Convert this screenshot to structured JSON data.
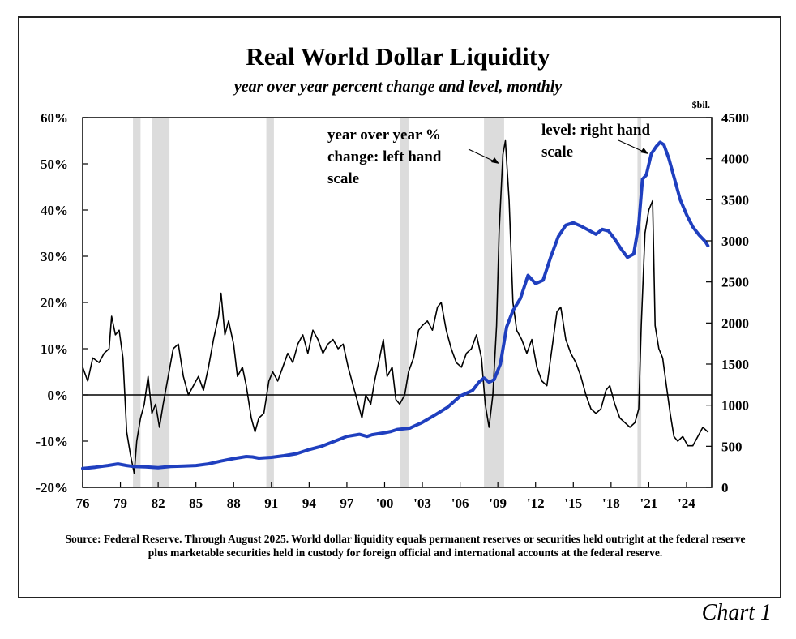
{
  "title": "Real World Dollar Liquidity",
  "subtitle": "year over year percent change and level, monthly",
  "source": "Source: Federal Reserve. Through August 2025. World dollar liquidity equals permanent reserves or securities held outright at the federal reserve plus marketable securities held in custody for foreign official and international accounts at the federal reserve.",
  "caption": "Chart 1",
  "colors": {
    "level_line": "#1f3fbf",
    "yoy_line": "#000000",
    "recession_band": "#dcdcdc"
  },
  "chart_data": {
    "type": "line",
    "x_tick_labels": [
      "76",
      "79",
      "82",
      "85",
      "88",
      "91",
      "94",
      "97",
      "'00",
      "'03",
      "'06",
      "'09",
      "'12",
      "'15",
      "'18",
      "'21",
      "'24"
    ],
    "x_ticks": [
      1976,
      1979,
      1982,
      1985,
      1988,
      1991,
      1994,
      1997,
      2000,
      2003,
      2006,
      2009,
      2012,
      2015,
      2018,
      2021,
      2024
    ],
    "xlim": [
      1976,
      2026
    ],
    "left_axis": {
      "unit": "",
      "ylim": [
        -20,
        60
      ],
      "ticks": [
        -20,
        -10,
        0,
        10,
        20,
        30,
        40,
        50,
        60
      ],
      "tick_labels": [
        "-20%",
        "-10%",
        "0%",
        "10%",
        "20%",
        "30%",
        "40%",
        "50%",
        "60%"
      ]
    },
    "right_axis": {
      "unit": "$bil.",
      "ylim": [
        0,
        4500
      ],
      "ticks": [
        0,
        500,
        1000,
        1500,
        2000,
        2500,
        3000,
        3500,
        4000,
        4500
      ],
      "tick_labels": [
        "0",
        "500",
        "1000",
        "1500",
        "2000",
        "2500",
        "3000",
        "3500",
        "4000",
        "4500"
      ]
    },
    "recessions": [
      [
        1980.0,
        1980.6
      ],
      [
        1981.5,
        1982.9
      ],
      [
        1990.6,
        1991.2
      ],
      [
        2001.2,
        2001.9
      ],
      [
        2007.9,
        2009.5
      ],
      [
        2020.1,
        2020.4
      ]
    ],
    "zero_line": 0,
    "series": [
      {
        "axis": "left",
        "annotation": "year over year % change: left hand scale",
        "color": "#000000",
        "points": [
          [
            1976.0,
            6
          ],
          [
            1976.4,
            3
          ],
          [
            1976.8,
            8
          ],
          [
            1977.3,
            7
          ],
          [
            1977.7,
            9
          ],
          [
            1978.1,
            10
          ],
          [
            1978.3,
            17
          ],
          [
            1978.6,
            13
          ],
          [
            1978.9,
            14
          ],
          [
            1979.2,
            8
          ],
          [
            1979.5,
            -8
          ],
          [
            1979.8,
            -13
          ],
          [
            1980.1,
            -17
          ],
          [
            1980.3,
            -10
          ],
          [
            1980.6,
            -5
          ],
          [
            1980.9,
            -2
          ],
          [
            1981.2,
            4
          ],
          [
            1981.5,
            -4
          ],
          [
            1981.8,
            -2
          ],
          [
            1982.1,
            -7
          ],
          [
            1982.4,
            -2
          ],
          [
            1982.8,
            4
          ],
          [
            1983.2,
            10
          ],
          [
            1983.6,
            11
          ],
          [
            1984.0,
            4
          ],
          [
            1984.4,
            0
          ],
          [
            1984.8,
            2
          ],
          [
            1985.2,
            4
          ],
          [
            1985.6,
            1
          ],
          [
            1986.0,
            6
          ],
          [
            1986.4,
            12
          ],
          [
            1986.8,
            17
          ],
          [
            1987.0,
            22
          ],
          [
            1987.3,
            13
          ],
          [
            1987.6,
            16
          ],
          [
            1988.0,
            11
          ],
          [
            1988.3,
            4
          ],
          [
            1988.7,
            6
          ],
          [
            1989.0,
            2
          ],
          [
            1989.4,
            -5
          ],
          [
            1989.7,
            -8
          ],
          [
            1990.0,
            -5
          ],
          [
            1990.4,
            -4
          ],
          [
            1990.8,
            3
          ],
          [
            1991.1,
            5
          ],
          [
            1991.5,
            3
          ],
          [
            1991.9,
            6
          ],
          [
            1992.3,
            9
          ],
          [
            1992.7,
            7
          ],
          [
            1993.1,
            11
          ],
          [
            1993.5,
            13
          ],
          [
            1993.9,
            9
          ],
          [
            1994.3,
            14
          ],
          [
            1994.7,
            12
          ],
          [
            1995.1,
            9
          ],
          [
            1995.5,
            11
          ],
          [
            1995.9,
            12
          ],
          [
            1996.3,
            10
          ],
          [
            1996.7,
            11
          ],
          [
            1997.1,
            6
          ],
          [
            1997.5,
            2
          ],
          [
            1997.9,
            -2
          ],
          [
            1998.2,
            -5
          ],
          [
            1998.5,
            0
          ],
          [
            1998.9,
            -2
          ],
          [
            1999.2,
            3
          ],
          [
            1999.6,
            8
          ],
          [
            1999.9,
            12
          ],
          [
            2000.2,
            4
          ],
          [
            2000.6,
            6
          ],
          [
            2000.9,
            -1
          ],
          [
            2001.2,
            -2
          ],
          [
            2001.6,
            0
          ],
          [
            2001.9,
            5
          ],
          [
            2002.3,
            8
          ],
          [
            2002.7,
            14
          ],
          [
            2003.0,
            15
          ],
          [
            2003.4,
            16
          ],
          [
            2003.8,
            14
          ],
          [
            2004.2,
            19
          ],
          [
            2004.5,
            20
          ],
          [
            2004.9,
            14
          ],
          [
            2005.3,
            10
          ],
          [
            2005.7,
            7
          ],
          [
            2006.1,
            6
          ],
          [
            2006.5,
            9
          ],
          [
            2006.9,
            10
          ],
          [
            2007.3,
            13
          ],
          [
            2007.7,
            8
          ],
          [
            2008.0,
            -2
          ],
          [
            2008.3,
            -7
          ],
          [
            2008.6,
            0
          ],
          [
            2008.9,
            15
          ],
          [
            2009.1,
            35
          ],
          [
            2009.4,
            52
          ],
          [
            2009.6,
            55
          ],
          [
            2009.9,
            42
          ],
          [
            2010.2,
            20
          ],
          [
            2010.5,
            14
          ],
          [
            2010.9,
            12
          ],
          [
            2011.3,
            9
          ],
          [
            2011.7,
            12
          ],
          [
            2012.1,
            6
          ],
          [
            2012.5,
            3
          ],
          [
            2012.9,
            2
          ],
          [
            2013.3,
            10
          ],
          [
            2013.7,
            18
          ],
          [
            2014.0,
            19
          ],
          [
            2014.4,
            12
          ],
          [
            2014.8,
            9
          ],
          [
            2015.2,
            7
          ],
          [
            2015.6,
            4
          ],
          [
            2016.0,
            0
          ],
          [
            2016.4,
            -3
          ],
          [
            2016.8,
            -4
          ],
          [
            2017.2,
            -3
          ],
          [
            2017.6,
            1
          ],
          [
            2017.9,
            2
          ],
          [
            2018.3,
            -2
          ],
          [
            2018.7,
            -5
          ],
          [
            2019.1,
            -6
          ],
          [
            2019.5,
            -7
          ],
          [
            2019.9,
            -6
          ],
          [
            2020.2,
            -3
          ],
          [
            2020.4,
            15
          ],
          [
            2020.7,
            35
          ],
          [
            2021.0,
            40
          ],
          [
            2021.3,
            42
          ],
          [
            2021.5,
            15
          ],
          [
            2021.8,
            10
          ],
          [
            2022.1,
            8
          ],
          [
            2022.4,
            2
          ],
          [
            2022.7,
            -4
          ],
          [
            2023.0,
            -9
          ],
          [
            2023.3,
            -10
          ],
          [
            2023.7,
            -9
          ],
          [
            2024.1,
            -11
          ],
          [
            2024.5,
            -11
          ],
          [
            2024.9,
            -9
          ],
          [
            2025.3,
            -7
          ],
          [
            2025.5,
            -7.5
          ],
          [
            2025.7,
            -8
          ]
        ]
      },
      {
        "axis": "right",
        "annotation": "level: right hand scale",
        "color": "#1f3fbf",
        "points": [
          [
            1976.0,
            230
          ],
          [
            1977.0,
            245
          ],
          [
            1978.0,
            265
          ],
          [
            1978.8,
            285
          ],
          [
            1979.5,
            265
          ],
          [
            1980.0,
            255
          ],
          [
            1981.0,
            250
          ],
          [
            1982.0,
            240
          ],
          [
            1983.0,
            255
          ],
          [
            1984.0,
            260
          ],
          [
            1985.0,
            265
          ],
          [
            1986.0,
            285
          ],
          [
            1987.0,
            320
          ],
          [
            1988.0,
            350
          ],
          [
            1989.0,
            375
          ],
          [
            1989.5,
            370
          ],
          [
            1990.0,
            355
          ],
          [
            1991.0,
            365
          ],
          [
            1992.0,
            385
          ],
          [
            1993.0,
            410
          ],
          [
            1994.0,
            460
          ],
          [
            1995.0,
            500
          ],
          [
            1996.0,
            560
          ],
          [
            1997.0,
            620
          ],
          [
            1998.0,
            645
          ],
          [
            1998.6,
            620
          ],
          [
            1999.0,
            640
          ],
          [
            2000.0,
            665
          ],
          [
            2000.5,
            680
          ],
          [
            2001.0,
            705
          ],
          [
            2002.0,
            720
          ],
          [
            2003.0,
            790
          ],
          [
            2004.0,
            880
          ],
          [
            2005.0,
            975
          ],
          [
            2006.0,
            1110
          ],
          [
            2007.0,
            1180
          ],
          [
            2007.5,
            1280
          ],
          [
            2007.9,
            1330
          ],
          [
            2008.3,
            1280
          ],
          [
            2008.7,
            1310
          ],
          [
            2009.2,
            1500
          ],
          [
            2009.7,
            1950
          ],
          [
            2010.2,
            2150
          ],
          [
            2010.8,
            2300
          ],
          [
            2011.4,
            2580
          ],
          [
            2012.0,
            2480
          ],
          [
            2012.6,
            2520
          ],
          [
            2013.2,
            2800
          ],
          [
            2013.8,
            3050
          ],
          [
            2014.4,
            3190
          ],
          [
            2015.0,
            3220
          ],
          [
            2015.6,
            3180
          ],
          [
            2016.2,
            3130
          ],
          [
            2016.8,
            3080
          ],
          [
            2017.3,
            3140
          ],
          [
            2017.8,
            3120
          ],
          [
            2018.3,
            3020
          ],
          [
            2018.8,
            2900
          ],
          [
            2019.3,
            2800
          ],
          [
            2019.8,
            2840
          ],
          [
            2020.2,
            3200
          ],
          [
            2020.5,
            3750
          ],
          [
            2020.8,
            3800
          ],
          [
            2021.2,
            4060
          ],
          [
            2021.6,
            4150
          ],
          [
            2021.9,
            4200
          ],
          [
            2022.2,
            4170
          ],
          [
            2022.6,
            4000
          ],
          [
            2023.0,
            3780
          ],
          [
            2023.5,
            3500
          ],
          [
            2024.0,
            3320
          ],
          [
            2024.5,
            3170
          ],
          [
            2025.0,
            3070
          ],
          [
            2025.5,
            2990
          ],
          [
            2025.7,
            2940
          ]
        ]
      }
    ]
  }
}
